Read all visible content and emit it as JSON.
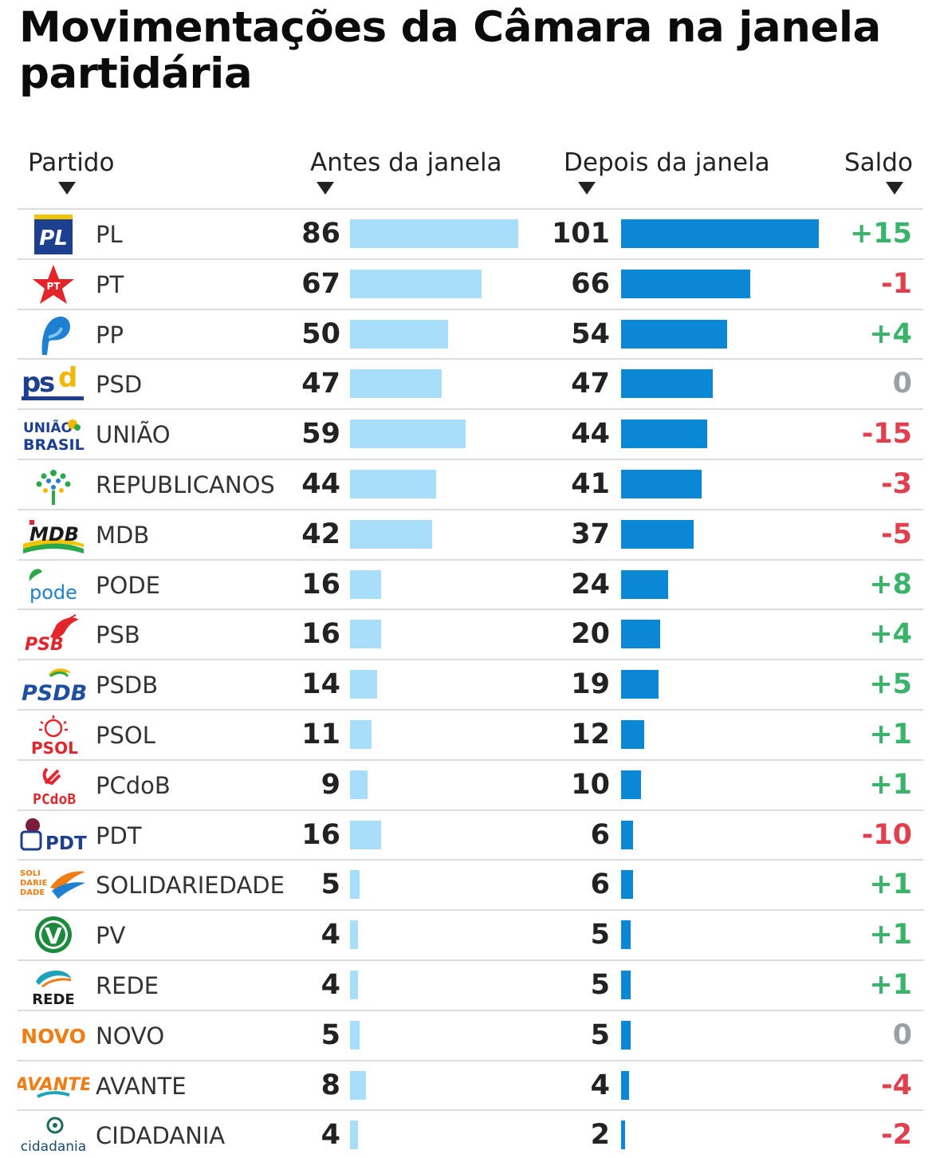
{
  "title": "Movimentações da Câmara na janela partidária",
  "headers": {
    "partido": "Partido",
    "antes": "Antes da janela",
    "depois": "Depois da janela",
    "saldo": "Saldo"
  },
  "colors": {
    "antes_bar": "#a9defa",
    "depois_bar": "#0a88d6",
    "positive": "#3ab36b",
    "negative": "#e0404e",
    "zero": "#9aa0a6"
  },
  "logos": {
    "PL": "PL",
    "PT": "PT",
    "PP": "P",
    "PSD": "psd",
    "UNIAO": "UNIÃO BRASIL",
    "MDB": "MDB",
    "PODE": "pode",
    "PSB": "PSB",
    "PSDB": "PSDB",
    "PSOL": "PSOL",
    "PCdoB": "PCdoB",
    "PDT": "PDT",
    "SOLIDARIEDADE": "SOLI DARIE DADE",
    "PV": "V",
    "REDE": "REDE",
    "NOVO": "NOVO",
    "AVANTE": "AVANTE",
    "CIDADANIA": "cidadania"
  },
  "chart_data": {
    "type": "bar",
    "title": "Movimentações da Câmara na janela partidária",
    "categories": [
      "PL",
      "PT",
      "PP",
      "PSD",
      "UNIÃO",
      "REPUBLICANOS",
      "MDB",
      "PODE",
      "PSB",
      "PSDB",
      "PSOL",
      "PCdoB",
      "PDT",
      "SOLIDARIEDADE",
      "PV",
      "REDE",
      "NOVO",
      "AVANTE",
      "CIDADANIA"
    ],
    "series": [
      {
        "name": "Antes da janela",
        "values": [
          86,
          67,
          50,
          47,
          59,
          44,
          42,
          16,
          16,
          14,
          11,
          9,
          16,
          5,
          4,
          4,
          5,
          8,
          4
        ]
      },
      {
        "name": "Depois da janela",
        "values": [
          101,
          66,
          54,
          47,
          44,
          41,
          37,
          24,
          20,
          19,
          12,
          10,
          6,
          6,
          5,
          5,
          5,
          4,
          2
        ]
      }
    ],
    "saldo": [
      "+15",
      "-1",
      "+4",
      "0",
      "-15",
      "-3",
      "-5",
      "+8",
      "+4",
      "+5",
      "+1",
      "+1",
      "-10",
      "+1",
      "+1",
      "+1",
      "0",
      "-4",
      "-2"
    ],
    "scale_max": 101
  }
}
